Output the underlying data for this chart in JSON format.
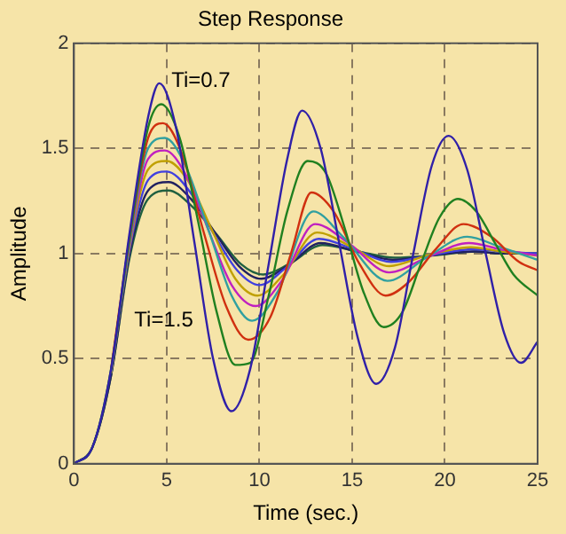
{
  "chart_data": {
    "type": "line",
    "title": "Step Response",
    "xlabel": "Time (sec.)",
    "ylabel": "Amplitude",
    "xlim": [
      0,
      25
    ],
    "xticks": [
      0,
      5,
      10,
      15,
      20,
      25
    ],
    "ylim": [
      0,
      2
    ],
    "yticks": [
      0,
      0.5,
      1,
      1.5,
      2
    ],
    "grid": true,
    "legend": false,
    "marker": "none",
    "line_style": "solid",
    "annotations": [
      "Ti=0.7",
      "Ti=1.5"
    ],
    "series": [
      {
        "color": "#3020a8",
        "x": [
          0,
          1,
          2,
          3,
          4,
          4.6,
          5.5,
          6.5,
          7.5,
          8.5,
          9.5,
          10.5,
          11.5,
          12.3,
          13.3,
          14.3,
          15.3,
          16.3,
          17.3,
          18.3,
          19.3,
          20.2,
          21.2,
          22.2,
          23.2,
          24.1,
          25
        ],
        "values": [
          0,
          0.08,
          0.45,
          1.1,
          1.65,
          1.81,
          1.6,
          1.05,
          0.5,
          0.25,
          0.45,
          0.95,
          1.45,
          1.68,
          1.5,
          1.05,
          0.6,
          0.38,
          0.55,
          1.0,
          1.42,
          1.56,
          1.4,
          1.0,
          0.62,
          0.48,
          0.58
        ]
      },
      {
        "color": "#208020",
        "x": [
          0,
          1,
          2,
          3,
          4,
          4.7,
          5.7,
          6.7,
          7.7,
          8.7,
          9.5,
          10.5,
          11.5,
          12.6,
          13.6,
          14.6,
          15.6,
          16.7,
          17.7,
          18.7,
          19.7,
          20.7,
          21.7,
          22.7,
          23.7,
          25
        ],
        "values": [
          0,
          0.08,
          0.45,
          1.08,
          1.6,
          1.71,
          1.55,
          1.15,
          0.72,
          0.47,
          0.48,
          0.8,
          1.2,
          1.44,
          1.38,
          1.12,
          0.82,
          0.65,
          0.72,
          0.95,
          1.17,
          1.26,
          1.2,
          1.05,
          0.9,
          0.8
        ]
      },
      {
        "color": "#d03010",
        "x": [
          2,
          3,
          4,
          4.8,
          5.8,
          7,
          8.2,
          9.4,
          10.6,
          11.7,
          12.8,
          14,
          15.4,
          16.8,
          18,
          19.5,
          21,
          22.5,
          24,
          25
        ],
        "values": [
          0.45,
          1.07,
          1.55,
          1.62,
          1.48,
          1.1,
          0.75,
          0.59,
          0.7,
          1.0,
          1.29,
          1.2,
          0.95,
          0.8,
          0.86,
          1.02,
          1.14,
          1.08,
          0.96,
          0.92
        ]
      },
      {
        "color": "#30a0a0",
        "x": [
          2,
          3,
          4,
          4.9,
          6,
          7.3,
          8.5,
          9.6,
          11,
          12.9,
          14.5,
          16.9,
          19,
          21.2,
          23,
          25
        ],
        "values": [
          0.44,
          1.05,
          1.5,
          1.55,
          1.42,
          1.1,
          0.8,
          0.68,
          0.82,
          1.2,
          1.08,
          0.87,
          0.98,
          1.08,
          1.03,
          0.97
        ]
      },
      {
        "color": "#c020c0",
        "x": [
          2,
          3,
          4,
          4.9,
          6,
          7.3,
          8.5,
          9.8,
          11.2,
          13,
          14.8,
          17,
          19,
          21.3,
          23,
          25
        ],
        "values": [
          0.44,
          1.04,
          1.45,
          1.49,
          1.38,
          1.1,
          0.85,
          0.75,
          0.87,
          1.14,
          1.05,
          0.91,
          0.98,
          1.05,
          1.02,
          0.99
        ]
      },
      {
        "color": "#c0a000",
        "x": [
          2,
          3,
          4,
          5,
          6.2,
          7.5,
          8.7,
          9.9,
          11.3,
          13.1,
          15,
          17,
          19,
          21.4,
          23,
          25
        ],
        "values": [
          0.43,
          1.03,
          1.4,
          1.44,
          1.34,
          1.1,
          0.88,
          0.8,
          0.9,
          1.1,
          1.03,
          0.94,
          0.99,
          1.03,
          1.01,
          0.99
        ]
      },
      {
        "color": "#4040e0",
        "x": [
          2,
          3,
          4,
          5,
          6.2,
          7.5,
          8.8,
          10,
          11.4,
          13.2,
          15.1,
          17.1,
          19.1,
          21.5,
          23,
          25
        ],
        "values": [
          0.43,
          1.02,
          1.35,
          1.39,
          1.3,
          1.1,
          0.92,
          0.85,
          0.93,
          1.07,
          1.02,
          0.96,
          0.99,
          1.02,
          1.01,
          1.0
        ]
      },
      {
        "color": "#202060",
        "x": [
          0,
          1,
          2,
          3,
          4,
          5.1,
          6.3,
          7.6,
          8.9,
          10.1,
          11.5,
          13.3,
          15.2,
          17.2,
          19.2,
          21.6,
          23,
          25
        ],
        "values": [
          0,
          0.08,
          0.42,
          1.0,
          1.3,
          1.34,
          1.26,
          1.1,
          0.94,
          0.88,
          0.94,
          1.05,
          1.01,
          0.97,
          0.99,
          1.01,
          1.0,
          1.0
        ]
      },
      {
        "color": "#206040",
        "x": [
          0,
          1,
          2,
          3,
          4,
          5.1,
          6.3,
          7.7,
          9,
          10.2,
          11.6,
          13.4,
          15.3,
          17.3,
          19.3,
          21.7,
          23,
          25
        ],
        "values": [
          0,
          0.08,
          0.42,
          0.98,
          1.26,
          1.3,
          1.23,
          1.09,
          0.95,
          0.9,
          0.95,
          1.04,
          1.01,
          0.98,
          0.99,
          1.01,
          1.0,
          1.0
        ]
      }
    ]
  }
}
